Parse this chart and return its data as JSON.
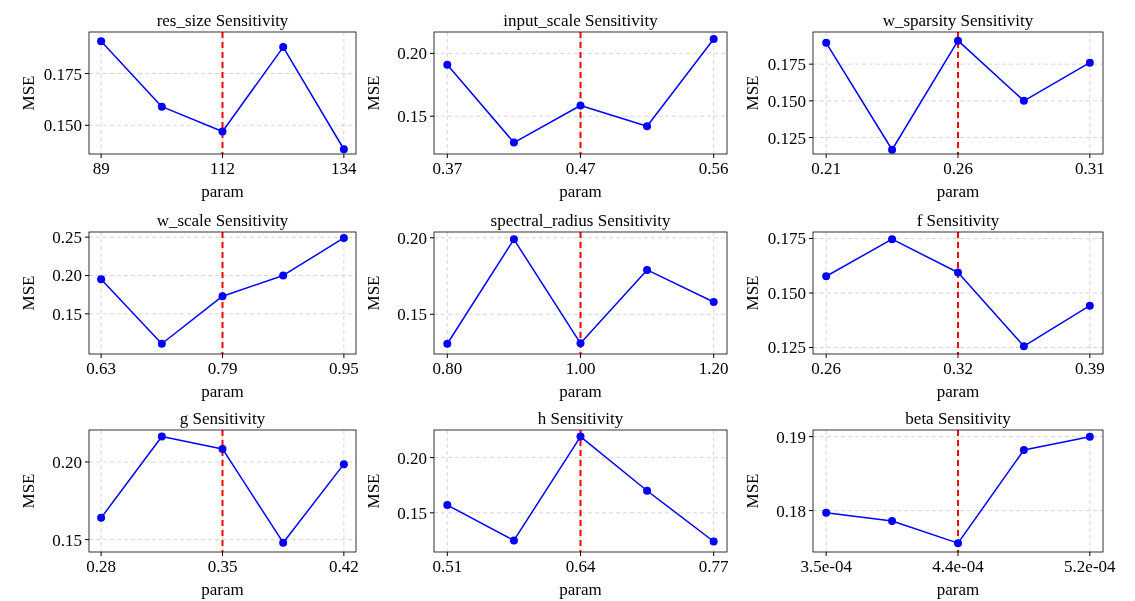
{
  "chart_data": [
    {
      "type": "line",
      "title": "res_size Sensitivity",
      "xlabel": "param",
      "ylabel": "MSE",
      "x": [
        89,
        100.25,
        111.5,
        122.75,
        134
      ],
      "series": [
        {
          "color": "#0000ff",
          "values": [
            0.1906,
            0.159,
            0.147,
            0.1878,
            0.1384
          ]
        }
      ],
      "xlim": [
        86.75,
        136.25
      ],
      "xticks": [
        89,
        {
          "value": 111.5,
          "label": "112"
        },
        134
      ],
      "ylim": [
        0.1361,
        0.1951
      ],
      "yticks": [
        {
          "value": 0.15,
          "label": "0.150"
        },
        {
          "value": 0.175,
          "label": "0.175"
        }
      ],
      "grid": true,
      "marker": "circle",
      "line_style": "solid",
      "ref_lines": [
        {
          "axis": "x",
          "value": 111.5,
          "color": "#ff0000",
          "line_style": "dashed"
        }
      ]
    },
    {
      "type": "line",
      "title": "input_scale Sensitivity",
      "xlabel": "param",
      "ylabel": "MSE",
      "x": [
        0.37,
        0.4175,
        0.465,
        0.5125,
        0.56
      ],
      "series": [
        {
          "color": "#0000ff",
          "values": [
            0.1909,
            0.129,
            0.1585,
            0.142,
            0.2114
          ]
        }
      ],
      "xlim": [
        0.3605,
        0.5695
      ],
      "xticks": [
        0.37,
        {
          "value": 0.465,
          "label": "0.47"
        },
        0.56
      ],
      "ylim": [
        0.1199,
        0.217
      ],
      "yticks": [
        {
          "value": 0.15,
          "label": "0.15"
        },
        {
          "value": 0.2,
          "label": "0.20"
        }
      ],
      "grid": true,
      "marker": "circle",
      "line_style": "solid",
      "ref_lines": [
        {
          "axis": "x",
          "value": 0.465,
          "color": "#ff0000",
          "line_style": "dashed"
        }
      ]
    },
    {
      "type": "line",
      "title": "w_sparsity Sensitivity",
      "xlabel": "param",
      "ylabel": "MSE",
      "x": [
        0.21,
        0.235,
        0.26,
        0.285,
        0.31
      ],
      "series": [
        {
          "color": "#0000ff",
          "values": [
            0.1895,
            0.1167,
            0.191,
            0.15,
            0.176
          ]
        }
      ],
      "xlim": [
        0.205,
        0.315
      ],
      "xticks": [
        0.21,
        0.26,
        0.31
      ],
      "ylim": [
        0.1138,
        0.1969
      ],
      "yticks": [
        {
          "value": 0.125,
          "label": "0.125"
        },
        {
          "value": 0.15,
          "label": "0.150"
        },
        {
          "value": 0.175,
          "label": "0.175"
        }
      ],
      "grid": true,
      "marker": "circle",
      "line_style": "solid",
      "ref_lines": [
        {
          "axis": "x",
          "value": 0.26,
          "color": "#ff0000",
          "line_style": "dashed"
        }
      ]
    },
    {
      "type": "line",
      "title": "w_scale Sensitivity",
      "xlabel": "param",
      "ylabel": "MSE",
      "x": [
        0.63,
        0.71,
        0.79,
        0.87,
        0.95
      ],
      "series": [
        {
          "color": "#0000ff",
          "values": [
            0.195,
            0.111,
            0.173,
            0.2,
            0.249
          ]
        }
      ],
      "xlim": [
        0.614,
        0.966
      ],
      "xticks": [
        0.63,
        0.79,
        0.95
      ],
      "ylim": [
        0.0976,
        0.2567
      ],
      "yticks": [
        0.15,
        {
          "value": 0.2,
          "label": "0.20"
        },
        0.25
      ],
      "grid": true,
      "marker": "circle",
      "line_style": "solid",
      "ref_lines": [
        {
          "axis": "x",
          "value": 0.79,
          "color": "#ff0000",
          "line_style": "dashed"
        }
      ]
    },
    {
      "type": "line",
      "title": "spectral_radius Sensitivity",
      "xlabel": "param",
      "ylabel": "MSE",
      "x": [
        0.8,
        0.9,
        1.0,
        1.1,
        1.2
      ],
      "series": [
        {
          "color": "#0000ff",
          "values": [
            0.1307,
            0.199,
            0.131,
            0.179,
            0.158
          ]
        }
      ],
      "xlim": [
        0.78,
        1.22
      ],
      "xticks": [
        {
          "value": 0.8,
          "label": "0.80"
        },
        {
          "value": 1.0,
          "label": "1.00"
        },
        {
          "value": 1.2,
          "label": "1.20"
        }
      ],
      "ylim": [
        0.124,
        0.2038
      ],
      "yticks": [
        0.15,
        {
          "value": 0.2,
          "label": "0.20"
        }
      ],
      "grid": true,
      "marker": "circle",
      "line_style": "solid",
      "ref_lines": [
        {
          "axis": "x",
          "value": 1.0,
          "color": "#ff0000",
          "line_style": "dashed"
        }
      ]
    },
    {
      "type": "line",
      "title": "f Sensitivity",
      "xlabel": "param",
      "ylabel": "MSE",
      "x": [
        0.26,
        0.2925,
        0.325,
        0.3575,
        0.39
      ],
      "series": [
        {
          "color": "#0000ff",
          "values": [
            0.1577,
            0.1747,
            0.1594,
            0.1256,
            0.1442
          ]
        }
      ],
      "xlim": [
        0.2535,
        0.3965
      ],
      "xticks": [
        0.26,
        {
          "value": 0.325,
          "label": "0.32"
        },
        0.39
      ],
      "ylim": [
        0.122,
        0.178
      ],
      "yticks": [
        {
          "value": 0.125,
          "label": "0.125"
        },
        {
          "value": 0.15,
          "label": "0.150"
        },
        {
          "value": 0.175,
          "label": "0.175"
        }
      ],
      "grid": true,
      "marker": "circle",
      "line_style": "solid",
      "ref_lines": [
        {
          "axis": "x",
          "value": 0.325,
          "color": "#ff0000",
          "line_style": "dashed"
        }
      ]
    },
    {
      "type": "line",
      "title": "g Sensitivity",
      "xlabel": "param",
      "ylabel": "MSE",
      "x": [
        0.28,
        0.315,
        0.35,
        0.385,
        0.42
      ],
      "series": [
        {
          "color": "#0000ff",
          "values": [
            0.164,
            0.2164,
            0.2084,
            0.148,
            0.1986
          ]
        }
      ],
      "xlim": [
        0.273,
        0.427
      ],
      "xticks": [
        0.28,
        0.35,
        0.42
      ],
      "ylim": [
        0.142,
        0.2206
      ],
      "yticks": [
        0.15,
        {
          "value": 0.2,
          "label": "0.20"
        }
      ],
      "grid": true,
      "marker": "circle",
      "line_style": "solid",
      "ref_lines": [
        {
          "axis": "x",
          "value": 0.35,
          "color": "#ff0000",
          "line_style": "dashed"
        }
      ]
    },
    {
      "type": "line",
      "title": "h Sensitivity",
      "xlabel": "param",
      "ylabel": "MSE",
      "x": [
        0.51,
        0.575,
        0.64,
        0.705,
        0.77
      ],
      "series": [
        {
          "color": "#0000ff",
          "values": [
            0.157,
            0.125,
            0.219,
            0.17,
            0.124
          ]
        }
      ],
      "xlim": [
        0.497,
        0.783
      ],
      "xticks": [
        0.51,
        0.64,
        0.77
      ],
      "ylim": [
        0.1145,
        0.225
      ],
      "yticks": [
        0.15,
        {
          "value": 0.2,
          "label": "0.20"
        }
      ],
      "grid": true,
      "marker": "circle",
      "line_style": "solid",
      "ref_lines": [
        {
          "axis": "x",
          "value": 0.64,
          "color": "#ff0000",
          "line_style": "dashed"
        }
      ]
    },
    {
      "type": "line",
      "title": "beta Sensitivity",
      "xlabel": "param",
      "ylabel": "MSE",
      "x": [
        0.00035,
        0.0003925,
        0.000435,
        0.0004775,
        0.00052
      ],
      "series": [
        {
          "color": "#0000ff",
          "values": [
            0.1797,
            0.1786,
            0.1756,
            0.1882,
            0.19
          ]
        }
      ],
      "xlim": [
        0.0003415,
        0.0005285
      ],
      "xticks": [
        {
          "value": 0.00035,
          "label": "3.5e-04"
        },
        {
          "value": 0.000435,
          "label": "4.4e-04"
        },
        {
          "value": 0.00052,
          "label": "5.2e-04"
        }
      ],
      "ylim": [
        0.1744,
        0.1909
      ],
      "yticks": [
        0.18,
        0.19
      ],
      "grid": true,
      "marker": "circle",
      "line_style": "solid",
      "ref_lines": [
        {
          "axis": "x",
          "value": 0.000435,
          "color": "#ff0000",
          "line_style": "dashed"
        }
      ]
    }
  ]
}
